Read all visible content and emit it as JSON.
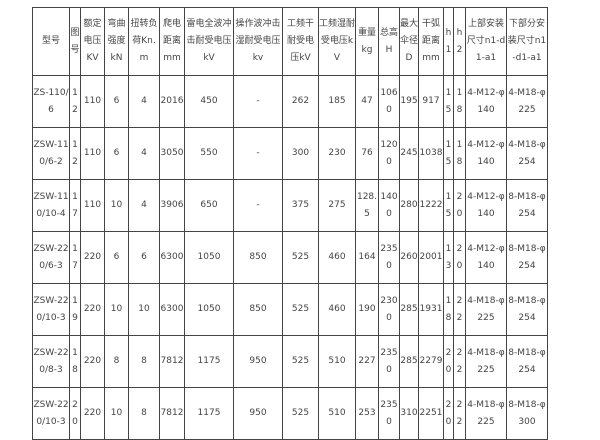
{
  "headers": [
    "型号",
    "图号",
    "额定电压KV",
    "弯曲强度kN",
    "扭转负荷Kn.m",
    "爬电距离mm",
    "雷电全波冲击耐受电压kV",
    "操作波冲击湿耐受电压kv",
    "工频干耐受电压kV",
    "工频湿耐受电压kV",
    "重量kg",
    "总高H",
    "最大伞径D",
    "干弧距离mm",
    "h1",
    "h2",
    "上部安装尺寸n1-d1-a1",
    "下部分安装尺寸n1-d1-a1"
  ],
  "rows": [
    [
      "ZS-110/6",
      "12",
      "110",
      "6",
      "4",
      "2016",
      "450",
      "-",
      "262",
      "185",
      "47",
      "1060",
      "195",
      "917",
      "15",
      "18",
      "4-M12-φ140",
      "4-M18-φ225"
    ],
    [
      "ZSW-110/6-2",
      "12",
      "110",
      "6",
      "4",
      "3050",
      "550",
      "-",
      "300",
      "230",
      "76",
      "1200",
      "245",
      "1038",
      "15",
      "18",
      "4-M12-φ140",
      "4-M18-φ254"
    ],
    [
      "ZSW-110/10-4",
      "17",
      "110",
      "10",
      "4",
      "3906",
      "650",
      "-",
      "375",
      "275",
      "128.5",
      "1400",
      "280",
      "1222",
      "15",
      "20",
      "4-M12-φ140",
      "8-M18-φ254"
    ],
    [
      "ZSW-220/6-3",
      "17",
      "220",
      "6",
      "6",
      "6300",
      "1050",
      "850",
      "525",
      "460",
      "164",
      "2350",
      "260",
      "2001",
      "13",
      "20",
      "4-M12-φ140",
      "8-M18-φ254"
    ],
    [
      "ZSW-220/10-3",
      "19",
      "220",
      "10",
      "10",
      "6300",
      "1050",
      "850",
      "525",
      "460",
      "190",
      "2300",
      "285",
      "1931",
      "18",
      "22",
      "4-M18-φ225",
      "8-M18-φ254"
    ],
    [
      "ZSW-220/8-3",
      "18",
      "220",
      "8",
      "8",
      "7812",
      "1175",
      "950",
      "525",
      "510",
      "227",
      "2350",
      "285",
      "2279",
      "20",
      "22",
      "4-M18-φ225",
      "8-M18-φ254"
    ],
    [
      "ZSW-220/10-3",
      "20",
      "220",
      "10",
      "8",
      "7812",
      "1175",
      "950",
      "525",
      "510",
      "253",
      "2350",
      "310",
      "2251",
      "20",
      "22",
      "4-M18-φ225",
      "8-M18-φ300"
    ]
  ]
}
